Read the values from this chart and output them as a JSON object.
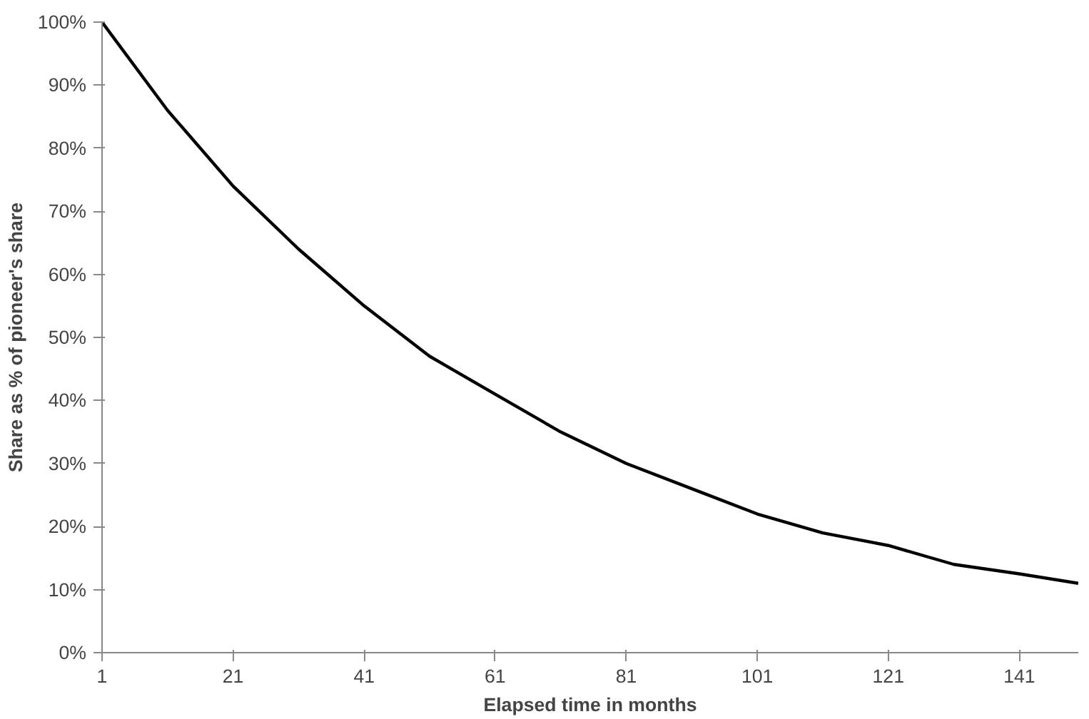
{
  "chart_data": {
    "type": "line",
    "xlabel": "Elapsed time in months",
    "ylabel": "Share as % of pioneer's share",
    "x": [
      1,
      11,
      21,
      31,
      41,
      51,
      61,
      71,
      81,
      91,
      101,
      111,
      121,
      131,
      141,
      150
    ],
    "series": [
      {
        "color": "#000000",
        "values": [
          100,
          86,
          74,
          64,
          55,
          47,
          41,
          35,
          30,
          26,
          22,
          19,
          17,
          14,
          12.5,
          11
        ]
      }
    ],
    "xlim": [
      1,
      150
    ],
    "ylim": [
      0,
      100
    ],
    "xticks": [
      1,
      21,
      41,
      61,
      81,
      101,
      121,
      141
    ],
    "yticks": [
      {
        "value": 0,
        "label": "0%"
      },
      {
        "value": 10,
        "label": "10%"
      },
      {
        "value": 20,
        "label": "20%"
      },
      {
        "value": 30,
        "label": "30%"
      },
      {
        "value": 40,
        "label": "40%"
      },
      {
        "value": 50,
        "label": "50%"
      },
      {
        "value": 60,
        "label": "60%"
      },
      {
        "value": 70,
        "label": "70%"
      },
      {
        "value": 80,
        "label": "80%"
      },
      {
        "value": 90,
        "label": "90%"
      },
      {
        "value": 100,
        "label": "100%"
      }
    ],
    "grid": false,
    "marker": "none",
    "line_style": "solid"
  }
}
